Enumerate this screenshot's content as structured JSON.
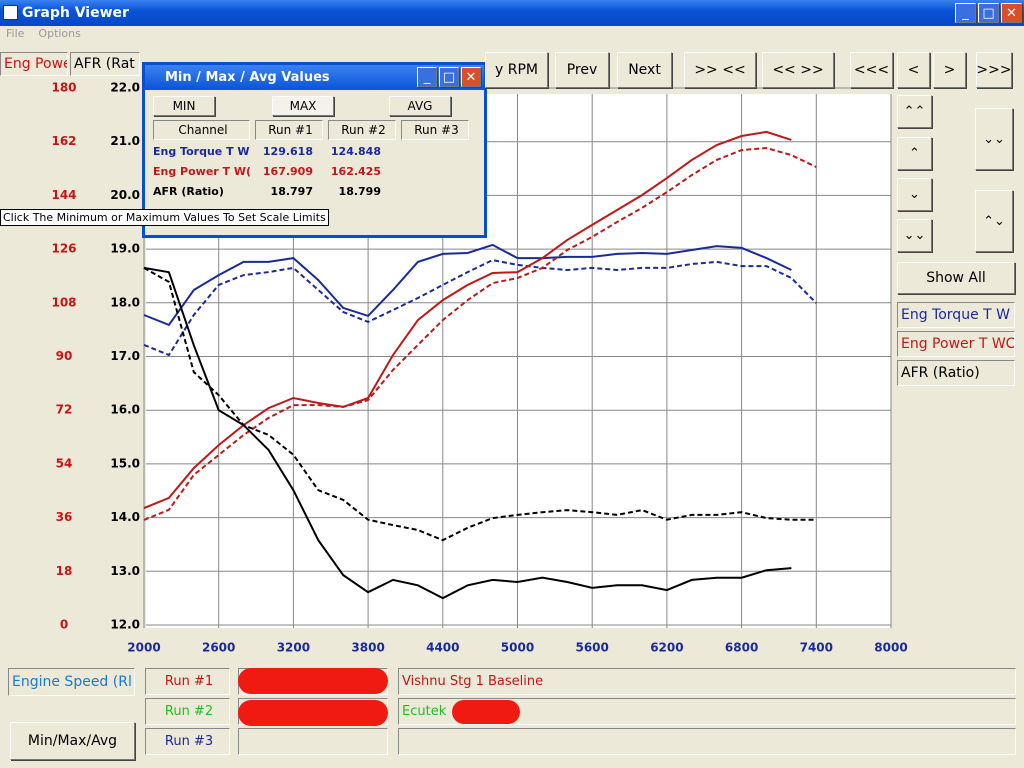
{
  "window": {
    "title": "Graph Viewer",
    "menu": [
      "File",
      "Options"
    ]
  },
  "tabs": [
    "Eng Powe",
    "AFR (Rat"
  ],
  "toolbar": [
    "y RPM",
    "Prev",
    "Next",
    ">> <<",
    "<< >>",
    "<<<",
    "<",
    ">",
    ">>>"
  ],
  "side_panel": {
    "show_all": "Show All",
    "legend": [
      "Eng Torque T W",
      "Eng Power T WC",
      "AFR (Ratio)"
    ]
  },
  "chart_data": {
    "type": "line",
    "x": [
      2000,
      2200,
      2400,
      2600,
      2800,
      3000,
      3200,
      3400,
      3600,
      3800,
      4000,
      4200,
      4400,
      4600,
      4800,
      5000,
      5200,
      5400,
      5600,
      5800,
      6000,
      6200,
      6400,
      6600,
      6800,
      7000,
      7200,
      7400
    ],
    "xlim": [
      2000,
      8000
    ],
    "xticks": [
      2000,
      2600,
      3200,
      3800,
      4400,
      5000,
      5600,
      6200,
      6800,
      7400,
      8000
    ],
    "ylim": [
      0,
      180
    ],
    "yticks": [
      0,
      18,
      36,
      54,
      72,
      90,
      108,
      126,
      144,
      162,
      180
    ],
    "y_color": "#c81414",
    "y2lim": [
      12,
      22
    ],
    "y2ticks": [
      {
        "value": 12,
        "label": "12.0"
      },
      {
        "value": 13,
        "label": "13.0"
      },
      {
        "value": 14,
        "label": "14.0"
      },
      {
        "value": 15,
        "label": "15.0"
      },
      {
        "value": 16,
        "label": "16.0"
      },
      {
        "value": 17,
        "label": "17.0"
      },
      {
        "value": 18,
        "label": "18.0"
      },
      {
        "value": 19,
        "label": "19.0"
      },
      {
        "value": 20,
        "label": "20.0"
      },
      {
        "value": 21,
        "label": "21.0"
      },
      {
        "value": 22,
        "label": "22.0"
      }
    ],
    "grid": true,
    "run_styles": [
      "solid",
      "dashed"
    ],
    "series": [
      {
        "name": "Eng Torque T W",
        "color": "#1a2a9a",
        "axis": "y",
        "runs": [
          [
            103.9,
            100.6,
            112.3,
            117.3,
            121.7,
            121.7,
            123.0,
            115.6,
            106.3,
            103.6,
            112.3,
            121.7,
            124.4,
            124.7,
            127.4,
            123.0,
            123.0,
            123.4,
            123.4,
            124.4,
            124.7,
            124.4,
            125.7,
            127.0,
            126.4,
            123.0,
            119.0,
            null
          ],
          [
            93.9,
            90.5,
            103.9,
            114.0,
            117.3,
            118.3,
            119.7,
            112.3,
            104.9,
            101.6,
            105.6,
            109.6,
            114.0,
            118.3,
            122.3,
            120.7,
            119.7,
            119.0,
            119.7,
            119.0,
            119.7,
            119.7,
            121.0,
            121.7,
            120.3,
            120.3,
            116.3,
            107.9
          ]
        ]
      },
      {
        "name": "Eng Power T WC",
        "color": "#c01818",
        "axis": "y",
        "runs": [
          [
            39.2,
            42.6,
            52.6,
            60.3,
            67.0,
            72.7,
            76.1,
            74.4,
            73.1,
            76.1,
            90.5,
            102.2,
            108.9,
            114.0,
            118.0,
            118.3,
            123.0,
            129.1,
            134.1,
            139.1,
            144.1,
            149.8,
            155.9,
            160.9,
            163.9,
            165.3,
            162.6,
            null
          ],
          [
            35.2,
            38.6,
            50.3,
            57.0,
            63.7,
            69.4,
            73.7,
            73.7,
            73.1,
            75.4,
            85.5,
            93.9,
            102.2,
            108.9,
            114.6,
            116.3,
            119.7,
            125.7,
            130.1,
            135.1,
            139.8,
            145.1,
            150.8,
            155.9,
            159.2,
            159.9,
            157.5,
            153.5
          ]
        ]
      },
      {
        "name": "AFR (Ratio)",
        "color": "#000000",
        "axis": "y2",
        "runs": [
          [
            18.65,
            18.57,
            17.21,
            16.0,
            15.72,
            15.26,
            14.51,
            13.58,
            12.93,
            12.61,
            12.84,
            12.74,
            12.5,
            12.74,
            12.84,
            12.8,
            12.88,
            12.8,
            12.69,
            12.74,
            12.74,
            12.65,
            12.84,
            12.88,
            12.88,
            13.02,
            13.06,
            null
          ],
          [
            18.65,
            18.39,
            16.71,
            16.28,
            15.72,
            15.54,
            15.17,
            14.51,
            14.33,
            13.96,
            13.86,
            13.77,
            13.58,
            13.81,
            13.99,
            14.05,
            14.1,
            14.14,
            14.1,
            14.05,
            14.14,
            13.96,
            14.05,
            14.05,
            14.1,
            13.99,
            13.96,
            13.96
          ]
        ]
      }
    ]
  },
  "popup": {
    "title": "Min / Max / Avg Values",
    "modes": [
      "MIN",
      "MAX",
      "AVG"
    ],
    "headers": [
      "Channel",
      "Run #1",
      "Run #2",
      "Run #3"
    ],
    "rows": [
      [
        "Eng Torque T W",
        "129.618",
        "124.848"
      ],
      [
        "Eng Power T W(",
        "167.909",
        "162.425"
      ],
      [
        "AFR (Ratio)",
        "18.797",
        "18.799"
      ]
    ],
    "tooltip": "Click The Minimum or Maximum Values To Set Scale Limits"
  },
  "bottom": {
    "x_channel": "Engine Speed (Rl",
    "button": "Min/Max/Avg",
    "runs": [
      "Run #1",
      "Run #2",
      "Run #3"
    ],
    "descriptions": [
      "Vishnu Stg 1 Baseline",
      "Ecutek",
      ""
    ]
  }
}
